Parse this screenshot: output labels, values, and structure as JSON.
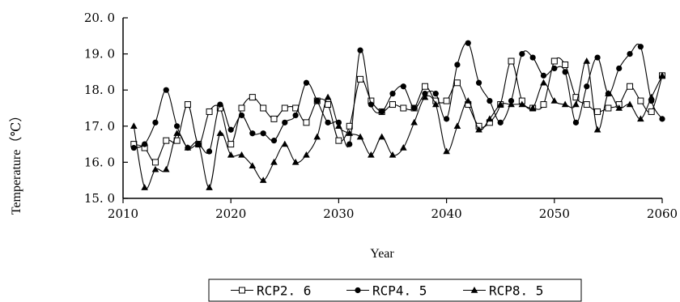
{
  "chart_data": {
    "type": "line",
    "xlabel": "Year",
    "ylabel": "Temperature（℃）",
    "xlim": [
      2010,
      2060
    ],
    "ylim": [
      15.0,
      20.0
    ],
    "x_ticks": [
      "2010",
      "2020",
      "2030",
      "2040",
      "2050",
      "2060"
    ],
    "y_ticks": [
      "15. 0",
      "16. 0",
      "17. 0",
      "18. 0",
      "19. 0",
      "20. 0"
    ],
    "grid": false,
    "legend_position": "bottom",
    "x": [
      2011,
      2012,
      2013,
      2014,
      2015,
      2016,
      2017,
      2018,
      2019,
      2020,
      2021,
      2022,
      2023,
      2024,
      2025,
      2026,
      2027,
      2028,
      2029,
      2030,
      2031,
      2032,
      2033,
      2034,
      2035,
      2036,
      2037,
      2038,
      2039,
      2040,
      2041,
      2042,
      2043,
      2044,
      2045,
      2046,
      2047,
      2048,
      2049,
      2050,
      2051,
      2052,
      2053,
      2054,
      2055,
      2056,
      2057,
      2058,
      2059,
      2060
    ],
    "series": [
      {
        "name": "RCP2. 6",
        "marker": "open-square",
        "values": [
          16.5,
          16.4,
          16.0,
          16.6,
          16.6,
          17.6,
          16.5,
          17.4,
          17.5,
          16.5,
          17.5,
          17.8,
          17.5,
          17.2,
          17.5,
          17.5,
          17.1,
          17.7,
          17.6,
          16.6,
          17.0,
          18.3,
          17.7,
          17.4,
          17.6,
          17.5,
          17.5,
          18.1,
          17.7,
          17.7,
          18.2,
          17.6,
          17.0,
          17.1,
          17.6,
          18.8,
          17.7,
          17.5,
          17.6,
          18.8,
          18.7,
          17.8,
          17.6,
          17.4,
          17.5,
          17.6,
          18.1,
          17.7,
          17.4,
          18.4
        ]
      },
      {
        "name": "RCP4. 5",
        "marker": "filled-circle",
        "values": [
          16.4,
          16.5,
          17.1,
          18.0,
          17.0,
          16.4,
          16.5,
          16.3,
          17.6,
          16.9,
          17.3,
          16.8,
          16.8,
          16.6,
          17.1,
          17.3,
          18.2,
          17.7,
          17.1,
          17.1,
          16.5,
          19.1,
          17.6,
          17.4,
          17.9,
          18.1,
          17.5,
          17.9,
          17.9,
          17.2,
          18.7,
          19.3,
          18.2,
          17.7,
          17.1,
          17.7,
          19.0,
          18.9,
          18.4,
          18.6,
          18.5,
          17.1,
          18.1,
          18.9,
          17.9,
          18.6,
          19.0,
          19.2,
          17.7,
          17.2
        ]
      },
      {
        "name": "RCP8. 5",
        "marker": "filled-triangle",
        "values": [
          17.0,
          15.3,
          15.8,
          15.8,
          16.8,
          16.4,
          16.5,
          15.3,
          16.8,
          16.2,
          16.2,
          15.9,
          15.5,
          16.0,
          16.5,
          16.0,
          16.2,
          16.7,
          17.8,
          17.0,
          16.8,
          16.7,
          16.2,
          16.7,
          16.2,
          16.4,
          17.1,
          17.8,
          17.6,
          16.3,
          17.0,
          17.7,
          16.9,
          17.2,
          17.6,
          17.6,
          17.6,
          17.5,
          18.2,
          17.7,
          17.6,
          17.6,
          18.8,
          16.9,
          17.9,
          17.5,
          17.6,
          17.2,
          17.8,
          18.4
        ]
      }
    ]
  }
}
